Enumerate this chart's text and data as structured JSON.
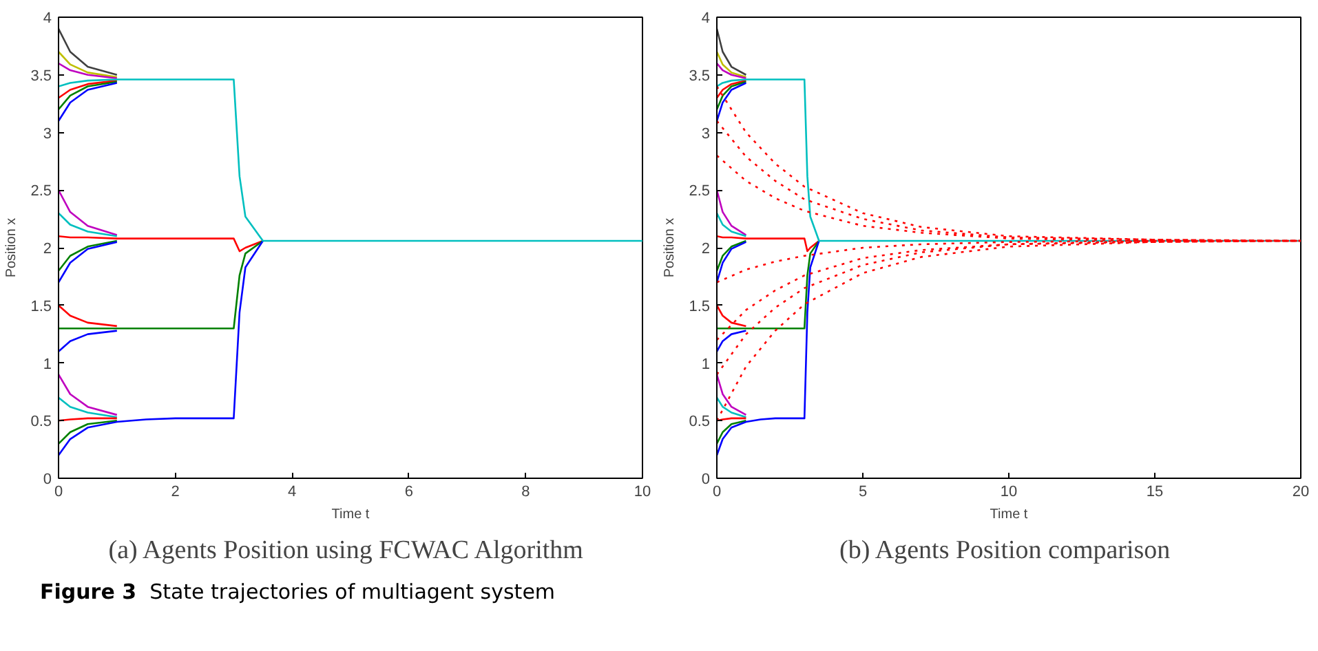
{
  "chart_data": [
    {
      "type": "line",
      "title": "(a)  Agents Position using FCWAC Algorithm",
      "xlabel": "Time t",
      "ylabel": "Position x",
      "annotations": [
        "Figure 3  State trajectories of multiagent system"
      ],
      "xlim": [
        0,
        10
      ],
      "ylim": [
        0,
        4
      ],
      "xticks": [
        0,
        2,
        4,
        6,
        8,
        10
      ],
      "yticks": [
        0,
        0.5,
        1,
        1.5,
        2,
        2.5,
        3,
        3.5,
        4
      ],
      "grid": false,
      "line_style": "solid",
      "x": [
        0,
        0.2,
        0.5,
        1,
        1.5,
        2,
        3,
        3.1,
        3.2,
        3.5,
        10
      ],
      "series": [
        {
          "color": "#404040",
          "values": [
            3.9,
            3.7,
            3.57,
            3.5,
            null,
            null,
            null,
            null,
            null,
            null,
            null
          ]
        },
        {
          "color": "#bfbf00",
          "values": [
            3.7,
            3.59,
            3.52,
            3.48,
            null,
            null,
            null,
            null,
            null,
            null,
            null
          ]
        },
        {
          "color": "#bf00bf",
          "values": [
            3.6,
            3.54,
            3.5,
            3.47,
            null,
            null,
            null,
            null,
            null,
            null,
            null
          ]
        },
        {
          "color": "#ff0000",
          "values": [
            3.3,
            3.37,
            3.42,
            3.45,
            null,
            null,
            null,
            null,
            null,
            null,
            null
          ]
        },
        {
          "color": "#008000",
          "values": [
            3.2,
            3.32,
            3.4,
            3.44,
            null,
            null,
            null,
            null,
            null,
            null,
            null
          ]
        },
        {
          "color": "#0000ff",
          "values": [
            3.1,
            3.26,
            3.37,
            3.43,
            null,
            null,
            null,
            null,
            null,
            null,
            null
          ]
        },
        {
          "color": "#bf00bf",
          "values": [
            2.5,
            2.31,
            2.19,
            2.11,
            null,
            null,
            null,
            null,
            null,
            null,
            null
          ]
        },
        {
          "color": "#00bfbf",
          "values": [
            2.3,
            2.2,
            2.14,
            2.1,
            null,
            null,
            null,
            null,
            null,
            null,
            null
          ]
        },
        {
          "color": "#008000",
          "values": [
            1.8,
            1.93,
            2.01,
            2.06,
            null,
            null,
            null,
            null,
            null,
            null,
            null
          ]
        },
        {
          "color": "#0000ff",
          "values": [
            1.7,
            1.87,
            1.99,
            2.05,
            null,
            null,
            null,
            null,
            null,
            null,
            null
          ]
        },
        {
          "color": "#ff0000",
          "values": [
            2.1,
            2.09,
            2.09,
            2.08,
            2.08,
            2.08,
            2.08,
            1.97,
            2.0,
            2.06,
            null
          ]
        },
        {
          "color": "#ff0000",
          "values": [
            1.5,
            1.41,
            1.35,
            1.32,
            null,
            null,
            null,
            null,
            null,
            null,
            null
          ]
        },
        {
          "color": "#0000ff",
          "values": [
            1.1,
            1.19,
            1.25,
            1.28,
            null,
            null,
            null,
            null,
            null,
            null,
            null
          ]
        },
        {
          "color": "#008000",
          "values": [
            1.3,
            1.3,
            1.3,
            1.3,
            1.3,
            1.3,
            1.3,
            1.76,
            1.95,
            2.06,
            null
          ]
        },
        {
          "color": "#bf00bf",
          "values": [
            0.9,
            0.73,
            0.62,
            0.55,
            null,
            null,
            null,
            null,
            null,
            null,
            null
          ]
        },
        {
          "color": "#00bfbf",
          "values": [
            0.7,
            0.62,
            0.57,
            0.53,
            null,
            null,
            null,
            null,
            null,
            null,
            null
          ]
        },
        {
          "color": "#ff0000",
          "values": [
            0.5,
            0.51,
            0.52,
            0.52,
            null,
            null,
            null,
            null,
            null,
            null,
            null
          ]
        },
        {
          "color": "#008000",
          "values": [
            0.3,
            0.4,
            0.47,
            0.5,
            null,
            null,
            null,
            null,
            null,
            null,
            null
          ]
        },
        {
          "color": "#0000ff",
          "values": [
            0.2,
            0.34,
            0.44,
            0.49,
            0.51,
            0.52,
            0.52,
            1.44,
            1.83,
            2.06,
            null
          ]
        },
        {
          "color": "#00bfbf",
          "values": [
            3.4,
            3.43,
            3.45,
            3.46,
            3.46,
            3.46,
            3.46,
            2.62,
            2.27,
            2.06,
            2.06
          ]
        }
      ]
    },
    {
      "type": "line",
      "title": "(b)  Agents Position comparison",
      "xlabel": "Time t",
      "ylabel": "Position x",
      "xlim": [
        0,
        20
      ],
      "ylim": [
        0,
        4
      ],
      "xticks": [
        0,
        5,
        10,
        15,
        20
      ],
      "yticks": [
        0,
        0.5,
        1,
        1.5,
        2,
        2.5,
        3,
        3.5,
        4
      ],
      "grid": false,
      "line_style": "solid",
      "x": [
        0,
        0.2,
        0.5,
        1,
        1.5,
        2,
        3,
        3.1,
        3.2,
        3.5,
        20
      ],
      "series": [
        {
          "color": "#404040",
          "values": [
            3.9,
            3.7,
            3.57,
            3.5,
            null,
            null,
            null,
            null,
            null,
            null,
            null
          ]
        },
        {
          "color": "#bfbf00",
          "values": [
            3.7,
            3.59,
            3.52,
            3.48,
            null,
            null,
            null,
            null,
            null,
            null,
            null
          ]
        },
        {
          "color": "#bf00bf",
          "values": [
            3.6,
            3.54,
            3.5,
            3.47,
            null,
            null,
            null,
            null,
            null,
            null,
            null
          ]
        },
        {
          "color": "#ff0000",
          "values": [
            3.3,
            3.37,
            3.42,
            3.45,
            null,
            null,
            null,
            null,
            null,
            null,
            null
          ]
        },
        {
          "color": "#008000",
          "values": [
            3.2,
            3.32,
            3.4,
            3.44,
            null,
            null,
            null,
            null,
            null,
            null,
            null
          ]
        },
        {
          "color": "#0000ff",
          "values": [
            3.1,
            3.26,
            3.37,
            3.43,
            null,
            null,
            null,
            null,
            null,
            null,
            null
          ]
        },
        {
          "color": "#bf00bf",
          "values": [
            2.5,
            2.31,
            2.19,
            2.11,
            null,
            null,
            null,
            null,
            null,
            null,
            null
          ]
        },
        {
          "color": "#00bfbf",
          "values": [
            2.3,
            2.2,
            2.14,
            2.1,
            null,
            null,
            null,
            null,
            null,
            null,
            null
          ]
        },
        {
          "color": "#008000",
          "values": [
            1.8,
            1.93,
            2.01,
            2.06,
            null,
            null,
            null,
            null,
            null,
            null,
            null
          ]
        },
        {
          "color": "#0000ff",
          "values": [
            1.7,
            1.87,
            1.99,
            2.05,
            null,
            null,
            null,
            null,
            null,
            null,
            null
          ]
        },
        {
          "color": "#ff0000",
          "values": [
            2.1,
            2.09,
            2.09,
            2.08,
            2.08,
            2.08,
            2.08,
            1.97,
            2.0,
            2.06,
            null
          ]
        },
        {
          "color": "#ff0000",
          "values": [
            1.5,
            1.41,
            1.35,
            1.32,
            null,
            null,
            null,
            null,
            null,
            null,
            null
          ]
        },
        {
          "color": "#0000ff",
          "values": [
            1.1,
            1.19,
            1.25,
            1.28,
            null,
            null,
            null,
            null,
            null,
            null,
            null
          ]
        },
        {
          "color": "#008000",
          "values": [
            1.3,
            1.3,
            1.3,
            1.3,
            1.3,
            1.3,
            1.3,
            1.76,
            1.95,
            2.06,
            null
          ]
        },
        {
          "color": "#bf00bf",
          "values": [
            0.9,
            0.73,
            0.62,
            0.55,
            null,
            null,
            null,
            null,
            null,
            null,
            null
          ]
        },
        {
          "color": "#00bfbf",
          "values": [
            0.7,
            0.62,
            0.57,
            0.53,
            null,
            null,
            null,
            null,
            null,
            null,
            null
          ]
        },
        {
          "color": "#ff0000",
          "values": [
            0.5,
            0.51,
            0.52,
            0.52,
            null,
            null,
            null,
            null,
            null,
            null,
            null
          ]
        },
        {
          "color": "#008000",
          "values": [
            0.3,
            0.4,
            0.47,
            0.5,
            null,
            null,
            null,
            null,
            null,
            null,
            null
          ]
        },
        {
          "color": "#0000ff",
          "values": [
            0.2,
            0.34,
            0.44,
            0.49,
            0.51,
            0.52,
            0.52,
            1.44,
            1.83,
            2.06,
            null
          ]
        },
        {
          "color": "#00bfbf",
          "values": [
            3.4,
            3.43,
            3.45,
            3.46,
            3.46,
            3.46,
            3.46,
            2.62,
            2.27,
            2.06,
            2.06
          ]
        },
        {
          "color": "#ff0000",
          "line_style": "dotted",
          "x": [
            0,
            1,
            2,
            3,
            5,
            7,
            10,
            15,
            20
          ],
          "values": [
            3.4,
            3.0,
            2.73,
            2.53,
            2.3,
            2.18,
            2.1,
            2.07,
            2.06
          ]
        },
        {
          "color": "#ff0000",
          "line_style": "dotted",
          "x": [
            0,
            1,
            2,
            3,
            5,
            7,
            10,
            15,
            20
          ],
          "values": [
            3.1,
            2.79,
            2.58,
            2.42,
            2.25,
            2.15,
            2.09,
            2.07,
            2.06
          ]
        },
        {
          "color": "#ff0000",
          "line_style": "dotted",
          "x": [
            0,
            1,
            2,
            3,
            5,
            7,
            10,
            15,
            20
          ],
          "values": [
            2.8,
            2.58,
            2.43,
            2.32,
            2.19,
            2.13,
            2.08,
            2.06,
            2.06
          ]
        },
        {
          "color": "#ff0000",
          "line_style": "dotted",
          "x": [
            0,
            1,
            2,
            3,
            5,
            7,
            10,
            15,
            20
          ],
          "values": [
            1.7,
            1.81,
            1.88,
            1.93,
            2.0,
            2.03,
            2.05,
            2.06,
            2.06
          ]
        },
        {
          "color": "#ff0000",
          "line_style": "dotted",
          "x": [
            0,
            1,
            2,
            3,
            5,
            7,
            10,
            15,
            20
          ],
          "values": [
            1.2,
            1.46,
            1.63,
            1.76,
            1.91,
            1.98,
            2.03,
            2.06,
            2.06
          ]
        },
        {
          "color": "#ff0000",
          "line_style": "dotted",
          "x": [
            0,
            1,
            2,
            3,
            5,
            7,
            10,
            15,
            20
          ],
          "values": [
            0.9,
            1.25,
            1.48,
            1.65,
            1.85,
            1.96,
            2.03,
            2.05,
            2.06
          ]
        },
        {
          "color": "#ff0000",
          "line_style": "dotted",
          "x": [
            0,
            1,
            2,
            3,
            5,
            7,
            10,
            15,
            20
          ],
          "values": [
            0.5,
            0.97,
            1.28,
            1.51,
            1.78,
            1.92,
            2.01,
            2.05,
            2.06
          ]
        }
      ]
    }
  ]
}
